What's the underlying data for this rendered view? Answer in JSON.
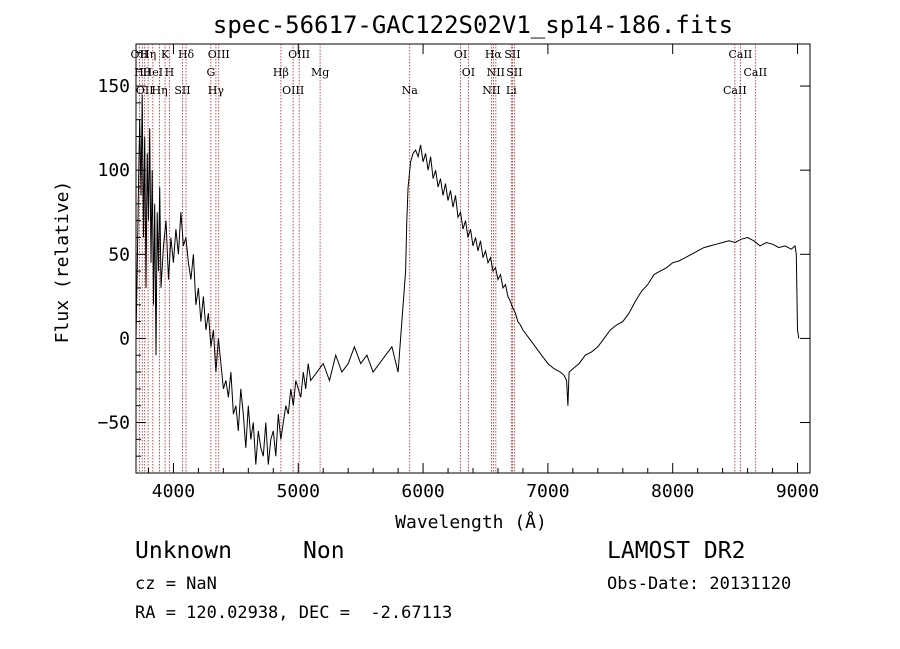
{
  "chart_data": {
    "type": "line",
    "title": "spec-56617-GAC122S02V1_sp14-186.fits",
    "xlabel": "Wavelength (Å)",
    "ylabel": "Flux (relative)",
    "xlim": [
      3700,
      9100
    ],
    "ylim": [
      -80,
      175
    ],
    "x_ticks": [
      4000,
      5000,
      6000,
      7000,
      8000,
      9000
    ],
    "y_ticks": [
      -50,
      0,
      50,
      100,
      150
    ],
    "line_color": "#000000",
    "marker_line_color": "#b22222",
    "series": [
      {
        "x": [
          3700,
          3710,
          3720,
          3730,
          3740,
          3750,
          3760,
          3770,
          3780,
          3790,
          3800,
          3810,
          3820,
          3830,
          3840,
          3850,
          3860,
          3870,
          3880,
          3890,
          3900,
          3920,
          3940,
          3960,
          3980,
          4000,
          4020,
          4040,
          4060,
          4080,
          4100,
          4120,
          4140,
          4160,
          4180,
          4200,
          4220,
          4240,
          4260,
          4280,
          4300,
          4320,
          4340,
          4360,
          4380,
          4400,
          4420,
          4440,
          4460,
          4480,
          4500,
          4520,
          4540,
          4560,
          4580,
          4600,
          4620,
          4640,
          4660,
          4680,
          4700,
          4720,
          4740,
          4760,
          4780,
          4800,
          4820,
          4840,
          4860,
          4880,
          4900,
          4920,
          4940,
          4960,
          4980,
          5000,
          5020,
          5040,
          5060,
          5080,
          5100,
          5150,
          5200,
          5250,
          5300,
          5350,
          5400,
          5450,
          5500,
          5550,
          5600,
          5650,
          5700,
          5750,
          5800,
          5820,
          5840,
          5860,
          5870,
          5880,
          5900,
          5920,
          5940,
          5960,
          5980,
          6000,
          6020,
          6040,
          6060,
          6080,
          6100,
          6120,
          6140,
          6160,
          6180,
          6200,
          6220,
          6240,
          6260,
          6280,
          6300,
          6320,
          6340,
          6360,
          6380,
          6400,
          6420,
          6440,
          6460,
          6480,
          6500,
          6520,
          6540,
          6560,
          6580,
          6600,
          6620,
          6640,
          6660,
          6680,
          6700,
          6720,
          6740,
          6760,
          6780,
          6800,
          6850,
          6900,
          6950,
          7000,
          7050,
          7100,
          7130,
          7150,
          7160,
          7170,
          7200,
          7250,
          7300,
          7350,
          7400,
          7450,
          7500,
          7550,
          7600,
          7650,
          7700,
          7750,
          7800,
          7850,
          7900,
          7950,
          8000,
          8050,
          8100,
          8150,
          8200,
          8250,
          8300,
          8350,
          8400,
          8450,
          8500,
          8550,
          8600,
          8650,
          8700,
          8750,
          8800,
          8850,
          8900,
          8950,
          8980,
          8990,
          9000,
          9010
        ],
        "y": [
          0,
          40,
          90,
          130,
          85,
          145,
          60,
          120,
          30,
          110,
          70,
          125,
          45,
          100,
          20,
          80,
          -10,
          75,
          40,
          90,
          30,
          55,
          70,
          35,
          60,
          45,
          65,
          50,
          75,
          55,
          60,
          45,
          35,
          50,
          20,
          30,
          10,
          25,
          5,
          15,
          -5,
          5,
          -20,
          0,
          -15,
          -30,
          -25,
          -35,
          -20,
          -45,
          -40,
          -55,
          -30,
          -45,
          -65,
          -40,
          -60,
          -50,
          -75,
          -55,
          -65,
          -70,
          -50,
          -75,
          -60,
          -55,
          -70,
          -45,
          -60,
          -50,
          -40,
          -45,
          -30,
          -40,
          -25,
          -30,
          -35,
          -20,
          -30,
          -15,
          -25,
          -20,
          -15,
          -25,
          -10,
          -20,
          -15,
          -5,
          -15,
          -10,
          -20,
          -15,
          -10,
          -5,
          -20,
          0,
          20,
          40,
          70,
          90,
          105,
          110,
          112,
          108,
          115,
          105,
          110,
          100,
          108,
          95,
          100,
          90,
          95,
          85,
          92,
          82,
          88,
          78,
          85,
          72,
          75,
          65,
          70,
          60,
          65,
          55,
          60,
          52,
          58,
          48,
          52,
          45,
          48,
          40,
          42,
          35,
          38,
          30,
          32,
          25,
          22,
          18,
          15,
          10,
          8,
          5,
          0,
          -5,
          -10,
          -15,
          -18,
          -20,
          -22,
          -25,
          -40,
          -20,
          -18,
          -15,
          -10,
          -8,
          -5,
          0,
          5,
          8,
          10,
          15,
          22,
          28,
          32,
          38,
          40,
          42,
          45,
          46,
          48,
          50,
          52,
          54,
          55,
          56,
          57,
          58,
          57,
          59,
          60,
          58,
          55,
          57,
          56,
          54,
          55,
          53,
          55,
          50,
          5,
          0
        ]
      }
    ],
    "line_markers": [
      {
        "wl": 3727,
        "label": "OII"
      },
      {
        "wl": 3750,
        "label": "Hθ"
      },
      {
        "wl": 3770,
        "label": "OII"
      },
      {
        "wl": 3797,
        "label": "Hη"
      },
      {
        "wl": 3835,
        "label": "HeI"
      },
      {
        "wl": 3889,
        "label": "Hη"
      },
      {
        "wl": 3933,
        "label": "K"
      },
      {
        "wl": 3968,
        "label": "H"
      },
      {
        "wl": 4072,
        "label": "SII"
      },
      {
        "wl": 4101,
        "label": "Hδ"
      },
      {
        "wl": 4300,
        "label": "G"
      },
      {
        "wl": 4340,
        "label": "Hγ"
      },
      {
        "wl": 4363,
        "label": "OIII"
      },
      {
        "wl": 4861,
        "label": "Hβ"
      },
      {
        "wl": 4959,
        "label": "OIII"
      },
      {
        "wl": 5007,
        "label": "OIII"
      },
      {
        "wl": 5175,
        "label": "Mg"
      },
      {
        "wl": 5893,
        "label": "Na"
      },
      {
        "wl": 6300,
        "label": "OI"
      },
      {
        "wl": 6363,
        "label": "OI"
      },
      {
        "wl": 6548,
        "label": "NII"
      },
      {
        "wl": 6563,
        "label": "Hα"
      },
      {
        "wl": 6583,
        "label": "NII"
      },
      {
        "wl": 6707,
        "label": "Li"
      },
      {
        "wl": 6716,
        "label": "SII"
      },
      {
        "wl": 6731,
        "label": "SII"
      },
      {
        "wl": 8498,
        "label": "CaII"
      },
      {
        "wl": 8542,
        "label": "CaII"
      },
      {
        "wl": 8662,
        "label": "CaII"
      }
    ]
  },
  "info": {
    "class": "Unknown",
    "subclass": "Non",
    "cz": "cz = NaN",
    "radec": "RA = 120.02938, DEC =  -2.67113",
    "survey": "LAMOST DR2",
    "obsdate": "Obs-Date: 20131120"
  }
}
